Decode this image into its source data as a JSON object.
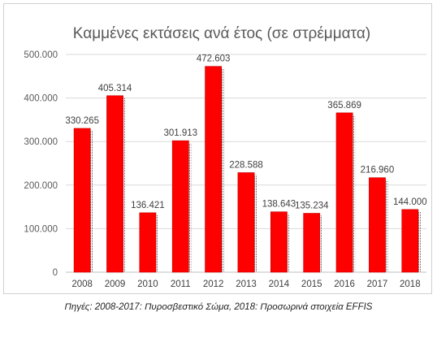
{
  "chart_data": {
    "type": "bar",
    "title": "Καμμένες εκτάσεις ανά έτος (σε στρέμματα)",
    "xlabel": "",
    "ylabel": "",
    "categories": [
      "2008",
      "2009",
      "2010",
      "2011",
      "2012",
      "2013",
      "2014",
      "2015",
      "2016",
      "2017",
      "2018"
    ],
    "values": [
      330265,
      405314,
      136421,
      301913,
      472603,
      228588,
      138643,
      135234,
      365869,
      216960,
      144000
    ],
    "value_labels": [
      "330.265",
      "405.314",
      "136.421",
      "301.913",
      "472.603",
      "228.588",
      "138.643",
      "135.234",
      "365.869",
      "216.960",
      "144.000"
    ],
    "ylim": [
      0,
      500000
    ],
    "yticks": [
      0,
      100000,
      200000,
      300000,
      400000,
      500000
    ],
    "ytick_labels": [
      "0",
      "100.000",
      "200.000",
      "300.000",
      "400.000",
      "500.000"
    ],
    "grid": true,
    "legend": "none",
    "bar_color": "#ff0000"
  },
  "source_note": "Πηγές: 2008-2017: Πυροσβεστικό Σώμα, 2018: Προσωρινά στοιχεία EFFIS"
}
